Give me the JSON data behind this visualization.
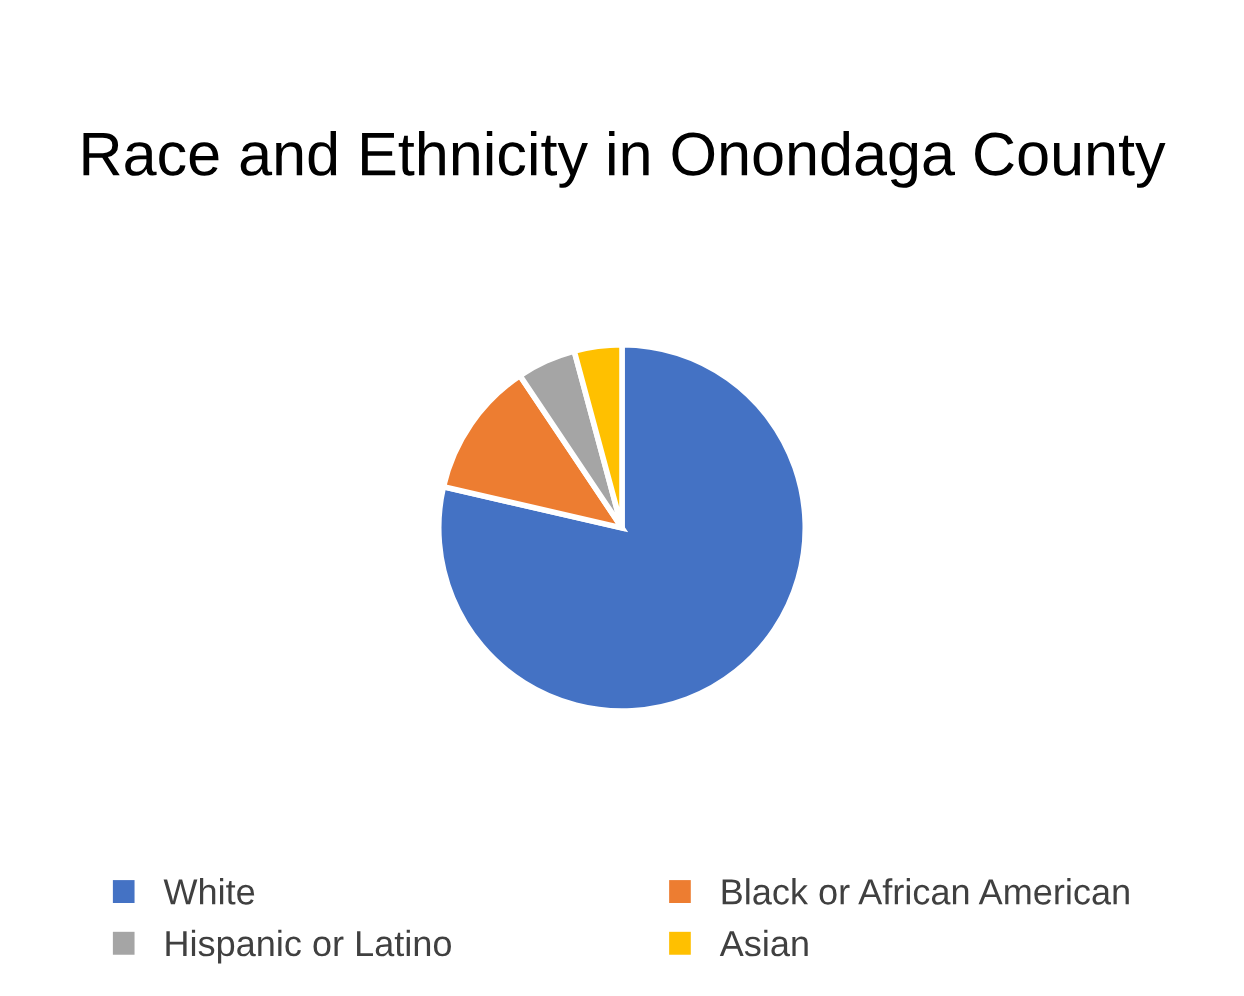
{
  "chart_data": {
    "type": "pie",
    "title": "Race and Ethnicity in Onondaga County",
    "categories": [
      "White",
      "Black or African American",
      "Hispanic or Latino",
      "Asian"
    ],
    "values": [
      78.6,
      12,
      5.2,
      4.2
    ],
    "colors": [
      "#4472c4",
      "#ed7d31",
      "#a5a5a5",
      "#ffc000"
    ],
    "legend": "bottom"
  }
}
